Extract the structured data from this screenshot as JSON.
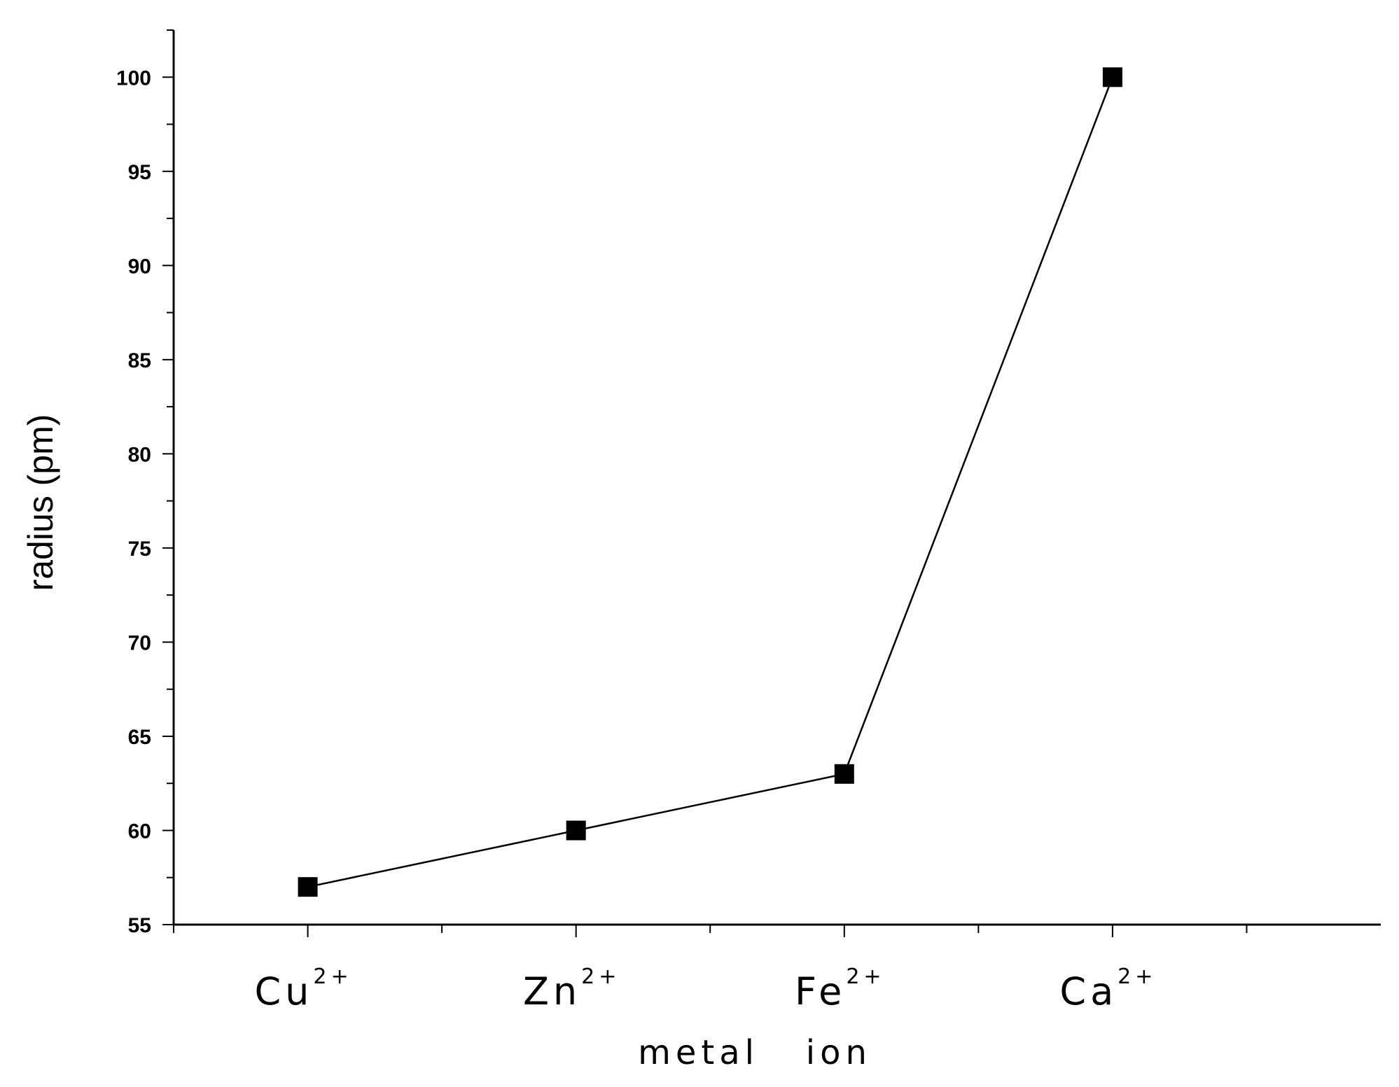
{
  "chart_data": {
    "type": "line",
    "title": "",
    "xlabel": "metal   ion",
    "ylabel": "radius (pm)",
    "categories": [
      {
        "base": "Cu",
        "sup": "2+"
      },
      {
        "base": "Zn",
        "sup": "2+"
      },
      {
        "base": "Fe",
        "sup": "2+"
      },
      {
        "base": "Ca",
        "sup": "2+"
      }
    ],
    "series": [
      {
        "values": [
          57,
          60,
          63,
          100
        ],
        "marker": "square",
        "color": "#000000"
      }
    ],
    "ylim": [
      55,
      102.5
    ],
    "yticks": [
      "55",
      "60",
      "65",
      "70",
      "75",
      "80",
      "85",
      "90",
      "95",
      "100"
    ],
    "grid": false,
    "legend": "none"
  }
}
